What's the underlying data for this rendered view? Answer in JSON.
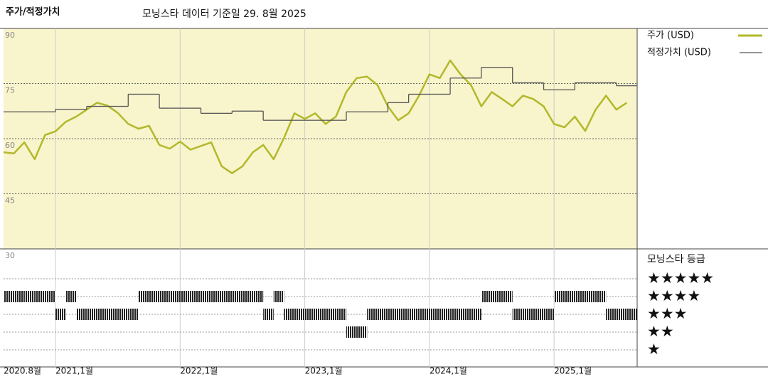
{
  "chart_data": {
    "type": "line",
    "title": "주가/적정가치",
    "subtitle": "모닝스타 데이터 기준일 29. 8월 2025",
    "x": [
      "2020-08",
      "2020-09",
      "2020-10",
      "2020-11",
      "2020-12",
      "2021-01",
      "2021-02",
      "2021-03",
      "2021-04",
      "2021-05",
      "2021-06",
      "2021-07",
      "2021-08",
      "2021-09",
      "2021-10",
      "2021-11",
      "2021-12",
      "2022-01",
      "2022-02",
      "2022-03",
      "2022-04",
      "2022-05",
      "2022-06",
      "2022-07",
      "2022-08",
      "2022-09",
      "2022-10",
      "2022-11",
      "2022-12",
      "2023-01",
      "2023-02",
      "2023-03",
      "2023-04",
      "2023-05",
      "2023-06",
      "2023-07",
      "2023-08",
      "2023-09",
      "2023-10",
      "2023-11",
      "2023-12",
      "2024-01",
      "2024-02",
      "2024-03",
      "2024-04",
      "2024-05",
      "2024-06",
      "2024-07",
      "2024-08",
      "2024-09",
      "2024-10",
      "2024-11",
      "2024-12",
      "2025-01",
      "2025-02",
      "2025-03",
      "2025-04",
      "2025-05",
      "2025-06",
      "2025-07",
      "2025-08"
    ],
    "xlim": [
      "2020-08",
      "2025-09"
    ],
    "xticks": [
      {
        "value": "2020-08",
        "label": "2020.8월"
      },
      {
        "value": "2021-01",
        "label": "2021,1월"
      },
      {
        "value": "2022-01",
        "label": "2022,1월"
      },
      {
        "value": "2023-01",
        "label": "2023,1월"
      },
      {
        "value": "2024-01",
        "label": "2024,1월"
      },
      {
        "value": "2025-01",
        "label": "2025,1월"
      }
    ],
    "ylim": [
      30,
      90
    ],
    "yticks": [
      30,
      45,
      60,
      75,
      90
    ],
    "grid": true,
    "series": [
      {
        "name": "주가 (USD)",
        "color": "#b3b82a",
        "values": [
          56.3,
          56,
          59,
          54.4,
          61,
          62,
          64.6,
          66,
          67.9,
          69.8,
          69,
          67,
          64,
          62.7,
          63.5,
          58.3,
          57.3,
          59.2,
          57,
          58,
          59,
          52.5,
          50.6,
          52.5,
          56.3,
          58.3,
          54.4,
          60.2,
          66.9,
          65.4,
          66.9,
          64,
          66,
          72.7,
          76.5,
          76.9,
          74.6,
          68.8,
          65,
          66.9,
          71.7,
          77.5,
          76.5,
          81.3,
          77.5,
          74.6,
          68.8,
          72.7,
          70.8,
          68.8,
          71.7,
          70.8,
          68.8,
          64,
          63.1,
          66,
          62.1,
          67.9,
          71.7,
          67.9,
          69.8
        ]
      },
      {
        "name": "적정가치 (USD)",
        "color": "#555555",
        "step": "post",
        "values": [
          67.3,
          67.3,
          67.3,
          67.3,
          67.3,
          68,
          68,
          68,
          68.8,
          68.8,
          68.8,
          68.8,
          72.1,
          72.1,
          72.1,
          68.3,
          68.3,
          68.3,
          68.3,
          66.9,
          66.9,
          66.9,
          67.5,
          67.5,
          67.5,
          65,
          65,
          65,
          65,
          65,
          65,
          65,
          65,
          67.3,
          67.3,
          67.3,
          67.3,
          69.8,
          69.8,
          72.1,
          72.1,
          72.1,
          72.1,
          76.5,
          76.5,
          76.5,
          79.4,
          79.4,
          79.4,
          75.2,
          75.2,
          75.2,
          73.3,
          73.3,
          73.3,
          75.2,
          75.2,
          75.2,
          75.2,
          74.4,
          74.4
        ]
      }
    ],
    "rating": {
      "title": "모닝스타 등급",
      "color": "#222222",
      "ticks": [
        {
          "value": 5,
          "label": "★★★★★"
        },
        {
          "value": 4,
          "label": "★★★★"
        },
        {
          "value": 3,
          "label": "★★★"
        },
        {
          "value": 2,
          "label": "★★"
        },
        {
          "value": 1,
          "label": "★"
        }
      ],
      "values": [
        4,
        4,
        4,
        4,
        4,
        3,
        4,
        3,
        3,
        3,
        3,
        3,
        3,
        4,
        4,
        4,
        4,
        4,
        4,
        4,
        4,
        4,
        4,
        4,
        4,
        3,
        4,
        3,
        3,
        3,
        3,
        3,
        3,
        2,
        2,
        3,
        3,
        3,
        3,
        3,
        3,
        3,
        3,
        3,
        3,
        3,
        4,
        4,
        4,
        3,
        3,
        3,
        3,
        4,
        4,
        4,
        4,
        4,
        3,
        3,
        3
      ]
    }
  }
}
